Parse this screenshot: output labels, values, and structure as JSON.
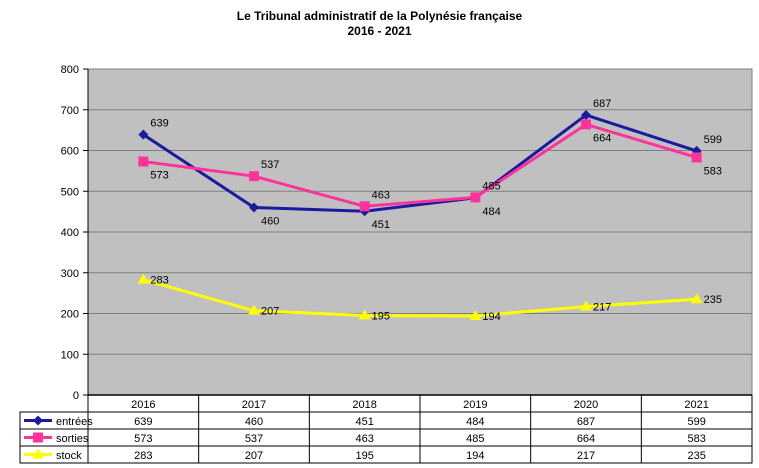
{
  "chart_data": {
    "type": "line",
    "title": "Le Tribunal administratif de la Polynésie française",
    "subtitle": "2016 - 2021",
    "categories": [
      "2016",
      "2017",
      "2018",
      "2019",
      "2020",
      "2021"
    ],
    "ylim": [
      0,
      800
    ],
    "yticks": [
      0,
      100,
      200,
      300,
      400,
      500,
      600,
      700,
      800
    ],
    "grid": true,
    "legend": "data-table-left",
    "series": [
      {
        "name": "entrées",
        "values": [
          639,
          460,
          451,
          484,
          687,
          599
        ],
        "color": "#1a1a9e",
        "marker": "diamond"
      },
      {
        "name": "sorties",
        "values": [
          573,
          537,
          463,
          485,
          664,
          583
        ],
        "color": "#ff3399",
        "marker": "square"
      },
      {
        "name": "stock",
        "values": [
          283,
          207,
          195,
          194,
          217,
          235
        ],
        "color": "#ffff00",
        "marker": "triangle"
      }
    ],
    "plot_background": "#c0c0c0"
  }
}
